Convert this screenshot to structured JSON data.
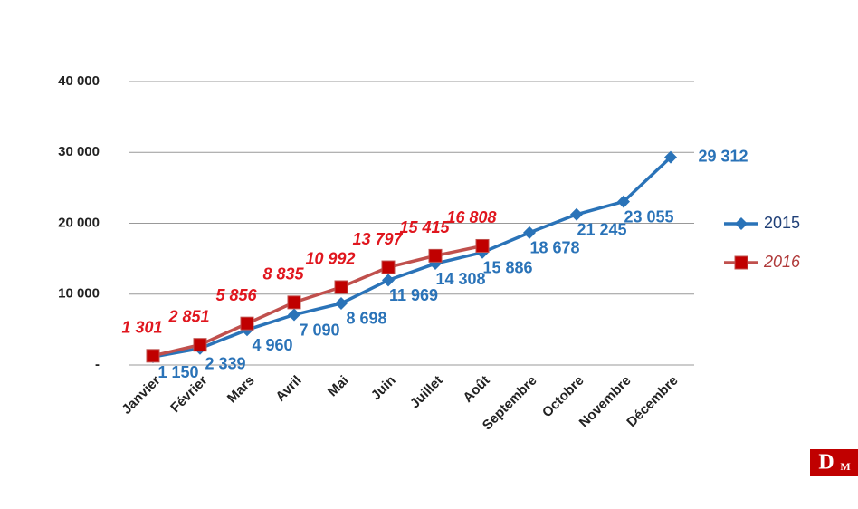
{
  "chart_data": {
    "type": "line",
    "categories": [
      "Janvier",
      "Février",
      "Mars",
      "Avril",
      "Mai",
      "Juin",
      "Juillet",
      "Août",
      "Septembre",
      "Octobre",
      "Novembre",
      "Décembre"
    ],
    "series": [
      {
        "name": "2015",
        "color": "#2a73b8",
        "marker": "diamond",
        "values": [
          1150,
          2339,
          4960,
          7090,
          8698,
          11969,
          14308,
          15886,
          18678,
          21245,
          23055,
          29312
        ],
        "value_labels": [
          "1 150",
          "2 339",
          "4 960",
          "7 090",
          "8 698",
          "11 969",
          "14 308",
          "15 886",
          "18 678",
          "21 245",
          "23 055",
          "29 312"
        ]
      },
      {
        "name": "2016",
        "color": "#c0504d",
        "marker": "square",
        "values": [
          1301,
          2851,
          5856,
          8835,
          10992,
          13797,
          15415,
          16808,
          null,
          null,
          null,
          null
        ],
        "value_labels": [
          "1 301",
          "2 851",
          "5 856",
          "8 835",
          "10 992",
          "13 797",
          "15 415",
          "16 808",
          null,
          null,
          null,
          null
        ]
      }
    ],
    "ylim": [
      0,
      40000
    ],
    "yticks": [
      {
        "value": 0,
        "label": "-"
      },
      {
        "value": 10000,
        "label": "10 000"
      },
      {
        "value": 20000,
        "label": "20 000"
      },
      {
        "value": 30000,
        "label": "30 000"
      },
      {
        "value": 40000,
        "label": "40 000"
      }
    ],
    "grid": true,
    "legend": "right"
  },
  "logo": {
    "letters": [
      "D",
      "M"
    ]
  }
}
